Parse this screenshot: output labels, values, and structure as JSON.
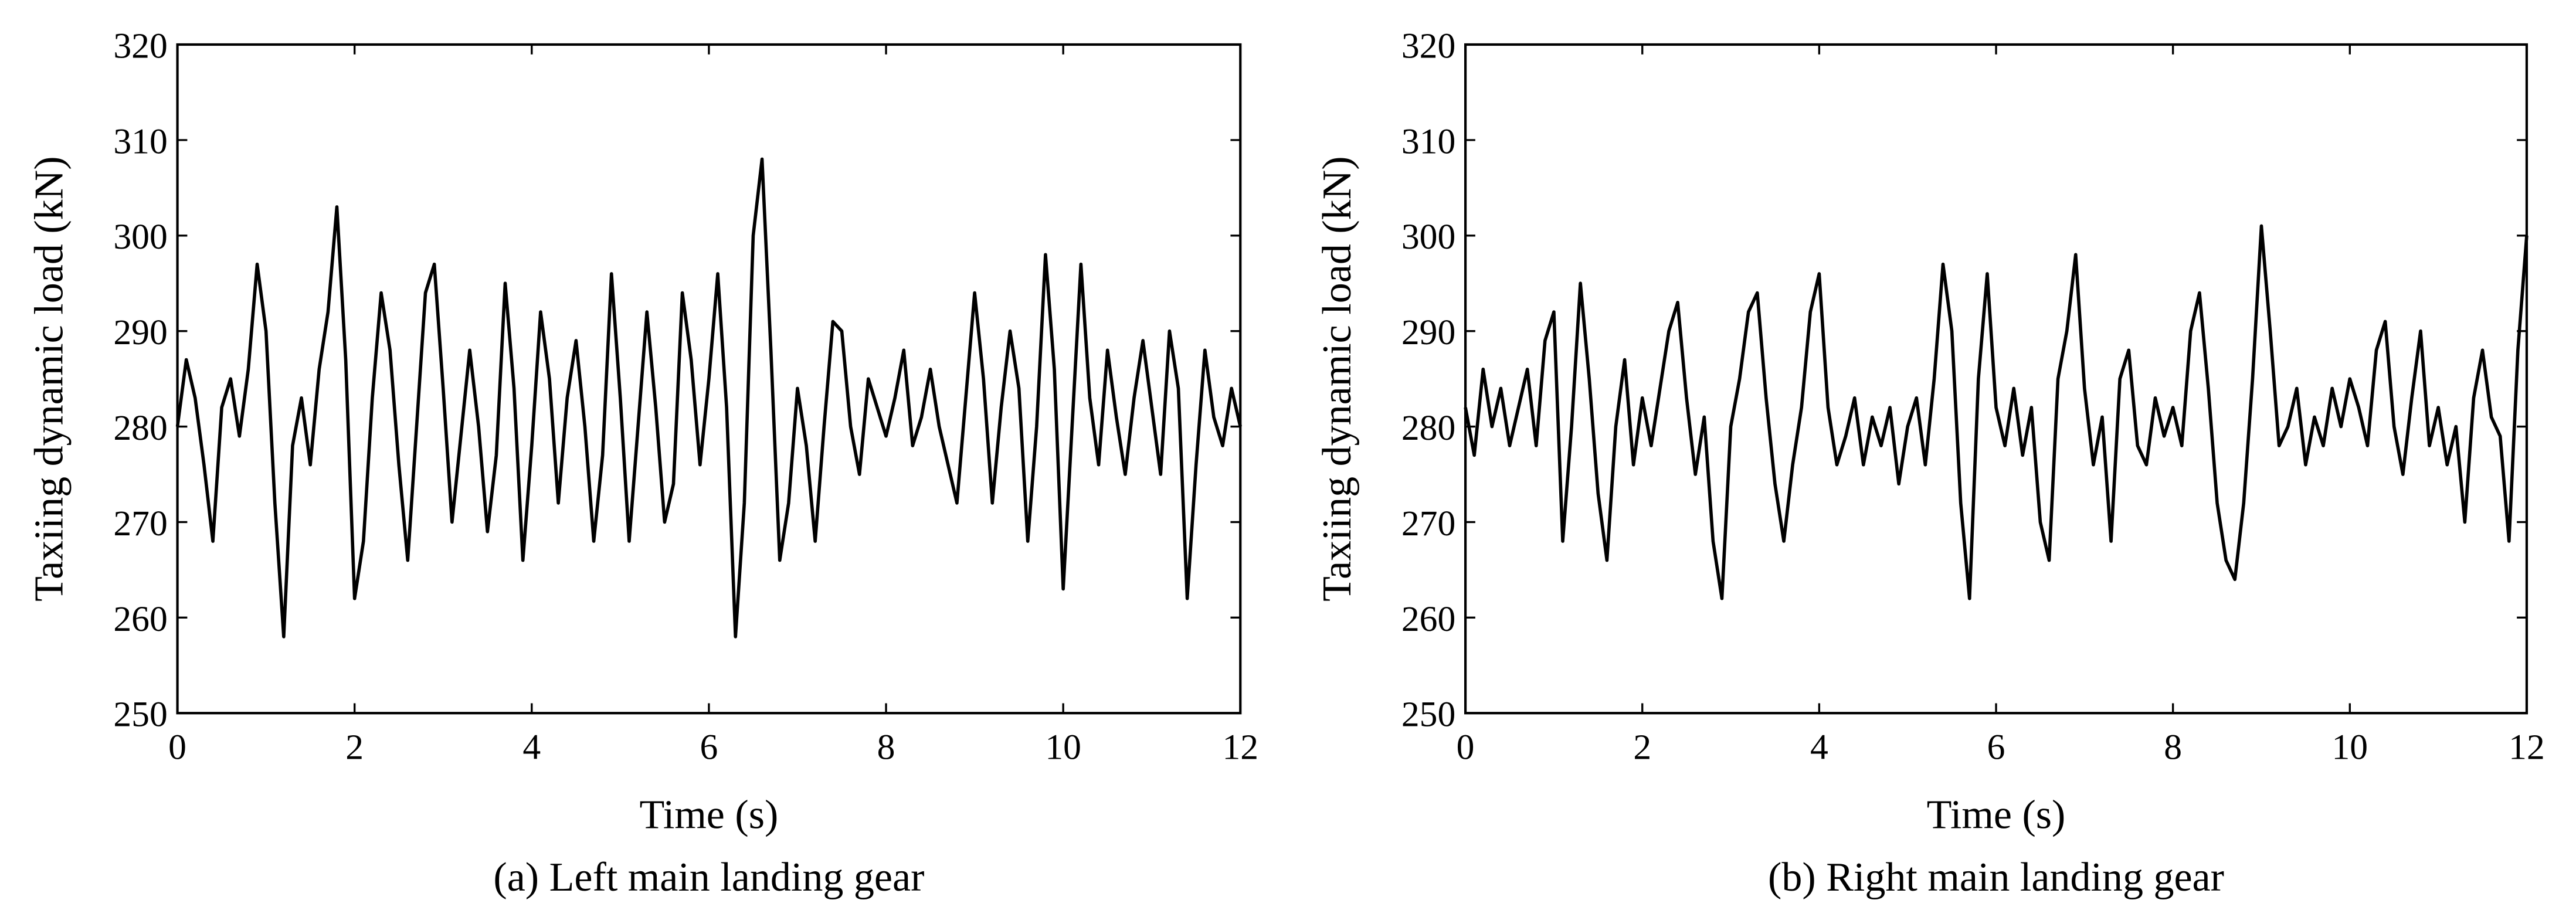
{
  "chart_data": [
    {
      "type": "line",
      "caption": "(a) Left main landing gear",
      "x_label": "Time (s)",
      "y_label": "Taxiing dynamic load (kN)",
      "color": "#000000",
      "xlim": [
        0,
        12
      ],
      "xticks": [
        0,
        2,
        4,
        6,
        8,
        10,
        12
      ],
      "ylim": [
        250,
        320
      ],
      "yticks": [
        250,
        260,
        270,
        280,
        290,
        300,
        310,
        320
      ],
      "x": [
        0,
        0.1,
        0.2,
        0.3,
        0.4,
        0.5,
        0.6,
        0.7,
        0.8,
        0.9,
        1,
        1.1,
        1.2,
        1.3,
        1.4,
        1.5,
        1.6,
        1.7,
        1.8,
        1.9,
        2,
        2.1,
        2.2,
        2.3,
        2.4,
        2.5,
        2.6,
        2.7,
        2.8,
        2.9,
        3,
        3.1,
        3.2,
        3.3,
        3.4,
        3.5,
        3.6,
        3.7,
        3.8,
        3.9,
        4,
        4.1,
        4.2,
        4.3,
        4.4,
        4.5,
        4.6,
        4.7,
        4.8,
        4.9,
        5,
        5.1,
        5.2,
        5.3,
        5.4,
        5.5,
        5.6,
        5.7,
        5.8,
        5.9,
        6,
        6.1,
        6.2,
        6.3,
        6.4,
        6.5,
        6.6,
        6.7,
        6.8,
        6.9,
        7,
        7.1,
        7.2,
        7.3,
        7.4,
        7.5,
        7.6,
        7.7,
        7.8,
        7.9,
        8,
        8.1,
        8.2,
        8.3,
        8.4,
        8.5,
        8.6,
        8.7,
        8.8,
        8.9,
        9,
        9.1,
        9.2,
        9.3,
        9.4,
        9.5,
        9.6,
        9.7,
        9.8,
        9.9,
        10,
        10.1,
        10.2,
        10.3,
        10.4,
        10.5,
        10.6,
        10.7,
        10.8,
        10.9,
        11,
        11.1,
        11.2,
        11.3,
        11.4,
        11.5,
        11.6,
        11.7,
        11.8,
        11.9,
        12
      ],
      "values": [
        280,
        287,
        283,
        276,
        268,
        282,
        285,
        279,
        286,
        297,
        290,
        272,
        258,
        278,
        283,
        276,
        286,
        292,
        303,
        287,
        262,
        268,
        283,
        294,
        288,
        276,
        266,
        280,
        294,
        297,
        284,
        270,
        279,
        288,
        280,
        269,
        277,
        295,
        284,
        266,
        278,
        292,
        285,
        272,
        283,
        289,
        280,
        268,
        277,
        296,
        283,
        268,
        280,
        292,
        282,
        270,
        274,
        294,
        287,
        276,
        285,
        296,
        282,
        258,
        272,
        300,
        308,
        288,
        266,
        272,
        284,
        278,
        268,
        280,
        291,
        290,
        280,
        275,
        285,
        282,
        279,
        283,
        288,
        278,
        281,
        286,
        280,
        276,
        272,
        283,
        294,
        285,
        272,
        282,
        290,
        284,
        268,
        280,
        298,
        286,
        263,
        280,
        297,
        283,
        276,
        288,
        281,
        275,
        283,
        289,
        282,
        275,
        290,
        284,
        262,
        276,
        288,
        281,
        278,
        284,
        280
      ]
    },
    {
      "type": "line",
      "caption": "(b) Right main landing gear",
      "x_label": "Time (s)",
      "y_label": "Taxiing dynamic load (kN)",
      "color": "#000000",
      "xlim": [
        0,
        12
      ],
      "xticks": [
        0,
        2,
        4,
        6,
        8,
        10,
        12
      ],
      "ylim": [
        250,
        320
      ],
      "yticks": [
        250,
        260,
        270,
        280,
        290,
        300,
        310,
        320
      ],
      "x": [
        0,
        0.1,
        0.2,
        0.3,
        0.4,
        0.5,
        0.6,
        0.7,
        0.8,
        0.9,
        1,
        1.1,
        1.2,
        1.3,
        1.4,
        1.5,
        1.6,
        1.7,
        1.8,
        1.9,
        2,
        2.1,
        2.2,
        2.3,
        2.4,
        2.5,
        2.6,
        2.7,
        2.8,
        2.9,
        3,
        3.1,
        3.2,
        3.3,
        3.4,
        3.5,
        3.6,
        3.7,
        3.8,
        3.9,
        4,
        4.1,
        4.2,
        4.3,
        4.4,
        4.5,
        4.6,
        4.7,
        4.8,
        4.9,
        5,
        5.1,
        5.2,
        5.3,
        5.4,
        5.5,
        5.6,
        5.7,
        5.8,
        5.9,
        6,
        6.1,
        6.2,
        6.3,
        6.4,
        6.5,
        6.6,
        6.7,
        6.8,
        6.9,
        7,
        7.1,
        7.2,
        7.3,
        7.4,
        7.5,
        7.6,
        7.7,
        7.8,
        7.9,
        8,
        8.1,
        8.2,
        8.3,
        8.4,
        8.5,
        8.6,
        8.7,
        8.8,
        8.9,
        9,
        9.1,
        9.2,
        9.3,
        9.4,
        9.5,
        9.6,
        9.7,
        9.8,
        9.9,
        10,
        10.1,
        10.2,
        10.3,
        10.4,
        10.5,
        10.6,
        10.7,
        10.8,
        10.9,
        11,
        11.1,
        11.2,
        11.3,
        11.4,
        11.5,
        11.6,
        11.7,
        11.8,
        11.9,
        12
      ],
      "values": [
        282,
        277,
        286,
        280,
        284,
        278,
        282,
        286,
        278,
        289,
        292,
        268,
        280,
        295,
        285,
        273,
        266,
        280,
        287,
        276,
        283,
        278,
        284,
        290,
        293,
        283,
        275,
        281,
        268,
        262,
        280,
        285,
        292,
        294,
        283,
        274,
        268,
        276,
        282,
        292,
        296,
        282,
        276,
        279,
        283,
        276,
        281,
        278,
        282,
        274,
        280,
        283,
        276,
        285,
        297,
        290,
        272,
        262,
        285,
        296,
        282,
        278,
        284,
        277,
        282,
        270,
        266,
        285,
        290,
        298,
        284,
        276,
        281,
        268,
        285,
        288,
        278,
        276,
        283,
        279,
        282,
        278,
        290,
        294,
        284,
        272,
        266,
        264,
        272,
        285,
        301,
        290,
        278,
        280,
        284,
        276,
        281,
        278,
        284,
        280,
        285,
        282,
        278,
        288,
        291,
        280,
        275,
        283,
        290,
        278,
        282,
        276,
        280,
        270,
        283,
        288,
        281,
        279,
        268,
        288,
        300
      ]
    }
  ]
}
